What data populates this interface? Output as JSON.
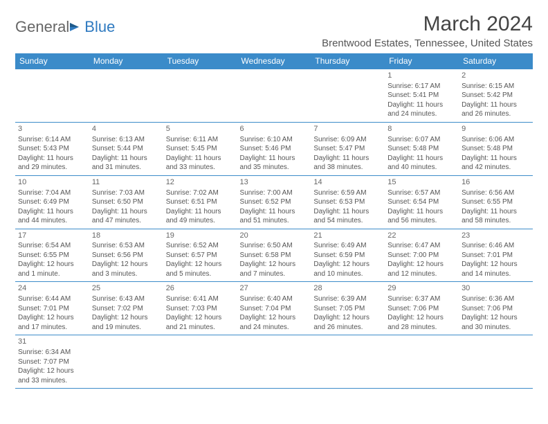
{
  "brand": {
    "part1": "General",
    "part2": "Blue"
  },
  "title": "March 2024",
  "location": "Brentwood Estates, Tennessee, United States",
  "colors": {
    "header_bg": "#3b8bc9",
    "header_fg": "#ffffff",
    "rule": "#3b8bc9",
    "text": "#555555"
  },
  "day_headers": [
    "Sunday",
    "Monday",
    "Tuesday",
    "Wednesday",
    "Thursday",
    "Friday",
    "Saturday"
  ],
  "weeks": [
    [
      null,
      null,
      null,
      null,
      null,
      {
        "n": "1",
        "sr": "Sunrise: 6:17 AM",
        "ss": "Sunset: 5:41 PM",
        "d1": "Daylight: 11 hours",
        "d2": "and 24 minutes."
      },
      {
        "n": "2",
        "sr": "Sunrise: 6:15 AM",
        "ss": "Sunset: 5:42 PM",
        "d1": "Daylight: 11 hours",
        "d2": "and 26 minutes."
      }
    ],
    [
      {
        "n": "3",
        "sr": "Sunrise: 6:14 AM",
        "ss": "Sunset: 5:43 PM",
        "d1": "Daylight: 11 hours",
        "d2": "and 29 minutes."
      },
      {
        "n": "4",
        "sr": "Sunrise: 6:13 AM",
        "ss": "Sunset: 5:44 PM",
        "d1": "Daylight: 11 hours",
        "d2": "and 31 minutes."
      },
      {
        "n": "5",
        "sr": "Sunrise: 6:11 AM",
        "ss": "Sunset: 5:45 PM",
        "d1": "Daylight: 11 hours",
        "d2": "and 33 minutes."
      },
      {
        "n": "6",
        "sr": "Sunrise: 6:10 AM",
        "ss": "Sunset: 5:46 PM",
        "d1": "Daylight: 11 hours",
        "d2": "and 35 minutes."
      },
      {
        "n": "7",
        "sr": "Sunrise: 6:09 AM",
        "ss": "Sunset: 5:47 PM",
        "d1": "Daylight: 11 hours",
        "d2": "and 38 minutes."
      },
      {
        "n": "8",
        "sr": "Sunrise: 6:07 AM",
        "ss": "Sunset: 5:48 PM",
        "d1": "Daylight: 11 hours",
        "d2": "and 40 minutes."
      },
      {
        "n": "9",
        "sr": "Sunrise: 6:06 AM",
        "ss": "Sunset: 5:48 PM",
        "d1": "Daylight: 11 hours",
        "d2": "and 42 minutes."
      }
    ],
    [
      {
        "n": "10",
        "sr": "Sunrise: 7:04 AM",
        "ss": "Sunset: 6:49 PM",
        "d1": "Daylight: 11 hours",
        "d2": "and 44 minutes."
      },
      {
        "n": "11",
        "sr": "Sunrise: 7:03 AM",
        "ss": "Sunset: 6:50 PM",
        "d1": "Daylight: 11 hours",
        "d2": "and 47 minutes."
      },
      {
        "n": "12",
        "sr": "Sunrise: 7:02 AM",
        "ss": "Sunset: 6:51 PM",
        "d1": "Daylight: 11 hours",
        "d2": "and 49 minutes."
      },
      {
        "n": "13",
        "sr": "Sunrise: 7:00 AM",
        "ss": "Sunset: 6:52 PM",
        "d1": "Daylight: 11 hours",
        "d2": "and 51 minutes."
      },
      {
        "n": "14",
        "sr": "Sunrise: 6:59 AM",
        "ss": "Sunset: 6:53 PM",
        "d1": "Daylight: 11 hours",
        "d2": "and 54 minutes."
      },
      {
        "n": "15",
        "sr": "Sunrise: 6:57 AM",
        "ss": "Sunset: 6:54 PM",
        "d1": "Daylight: 11 hours",
        "d2": "and 56 minutes."
      },
      {
        "n": "16",
        "sr": "Sunrise: 6:56 AM",
        "ss": "Sunset: 6:55 PM",
        "d1": "Daylight: 11 hours",
        "d2": "and 58 minutes."
      }
    ],
    [
      {
        "n": "17",
        "sr": "Sunrise: 6:54 AM",
        "ss": "Sunset: 6:55 PM",
        "d1": "Daylight: 12 hours",
        "d2": "and 1 minute."
      },
      {
        "n": "18",
        "sr": "Sunrise: 6:53 AM",
        "ss": "Sunset: 6:56 PM",
        "d1": "Daylight: 12 hours",
        "d2": "and 3 minutes."
      },
      {
        "n": "19",
        "sr": "Sunrise: 6:52 AM",
        "ss": "Sunset: 6:57 PM",
        "d1": "Daylight: 12 hours",
        "d2": "and 5 minutes."
      },
      {
        "n": "20",
        "sr": "Sunrise: 6:50 AM",
        "ss": "Sunset: 6:58 PM",
        "d1": "Daylight: 12 hours",
        "d2": "and 7 minutes."
      },
      {
        "n": "21",
        "sr": "Sunrise: 6:49 AM",
        "ss": "Sunset: 6:59 PM",
        "d1": "Daylight: 12 hours",
        "d2": "and 10 minutes."
      },
      {
        "n": "22",
        "sr": "Sunrise: 6:47 AM",
        "ss": "Sunset: 7:00 PM",
        "d1": "Daylight: 12 hours",
        "d2": "and 12 minutes."
      },
      {
        "n": "23",
        "sr": "Sunrise: 6:46 AM",
        "ss": "Sunset: 7:01 PM",
        "d1": "Daylight: 12 hours",
        "d2": "and 14 minutes."
      }
    ],
    [
      {
        "n": "24",
        "sr": "Sunrise: 6:44 AM",
        "ss": "Sunset: 7:01 PM",
        "d1": "Daylight: 12 hours",
        "d2": "and 17 minutes."
      },
      {
        "n": "25",
        "sr": "Sunrise: 6:43 AM",
        "ss": "Sunset: 7:02 PM",
        "d1": "Daylight: 12 hours",
        "d2": "and 19 minutes."
      },
      {
        "n": "26",
        "sr": "Sunrise: 6:41 AM",
        "ss": "Sunset: 7:03 PM",
        "d1": "Daylight: 12 hours",
        "d2": "and 21 minutes."
      },
      {
        "n": "27",
        "sr": "Sunrise: 6:40 AM",
        "ss": "Sunset: 7:04 PM",
        "d1": "Daylight: 12 hours",
        "d2": "and 24 minutes."
      },
      {
        "n": "28",
        "sr": "Sunrise: 6:39 AM",
        "ss": "Sunset: 7:05 PM",
        "d1": "Daylight: 12 hours",
        "d2": "and 26 minutes."
      },
      {
        "n": "29",
        "sr": "Sunrise: 6:37 AM",
        "ss": "Sunset: 7:06 PM",
        "d1": "Daylight: 12 hours",
        "d2": "and 28 minutes."
      },
      {
        "n": "30",
        "sr": "Sunrise: 6:36 AM",
        "ss": "Sunset: 7:06 PM",
        "d1": "Daylight: 12 hours",
        "d2": "and 30 minutes."
      }
    ],
    [
      {
        "n": "31",
        "sr": "Sunrise: 6:34 AM",
        "ss": "Sunset: 7:07 PM",
        "d1": "Daylight: 12 hours",
        "d2": "and 33 minutes."
      },
      null,
      null,
      null,
      null,
      null,
      null
    ]
  ]
}
